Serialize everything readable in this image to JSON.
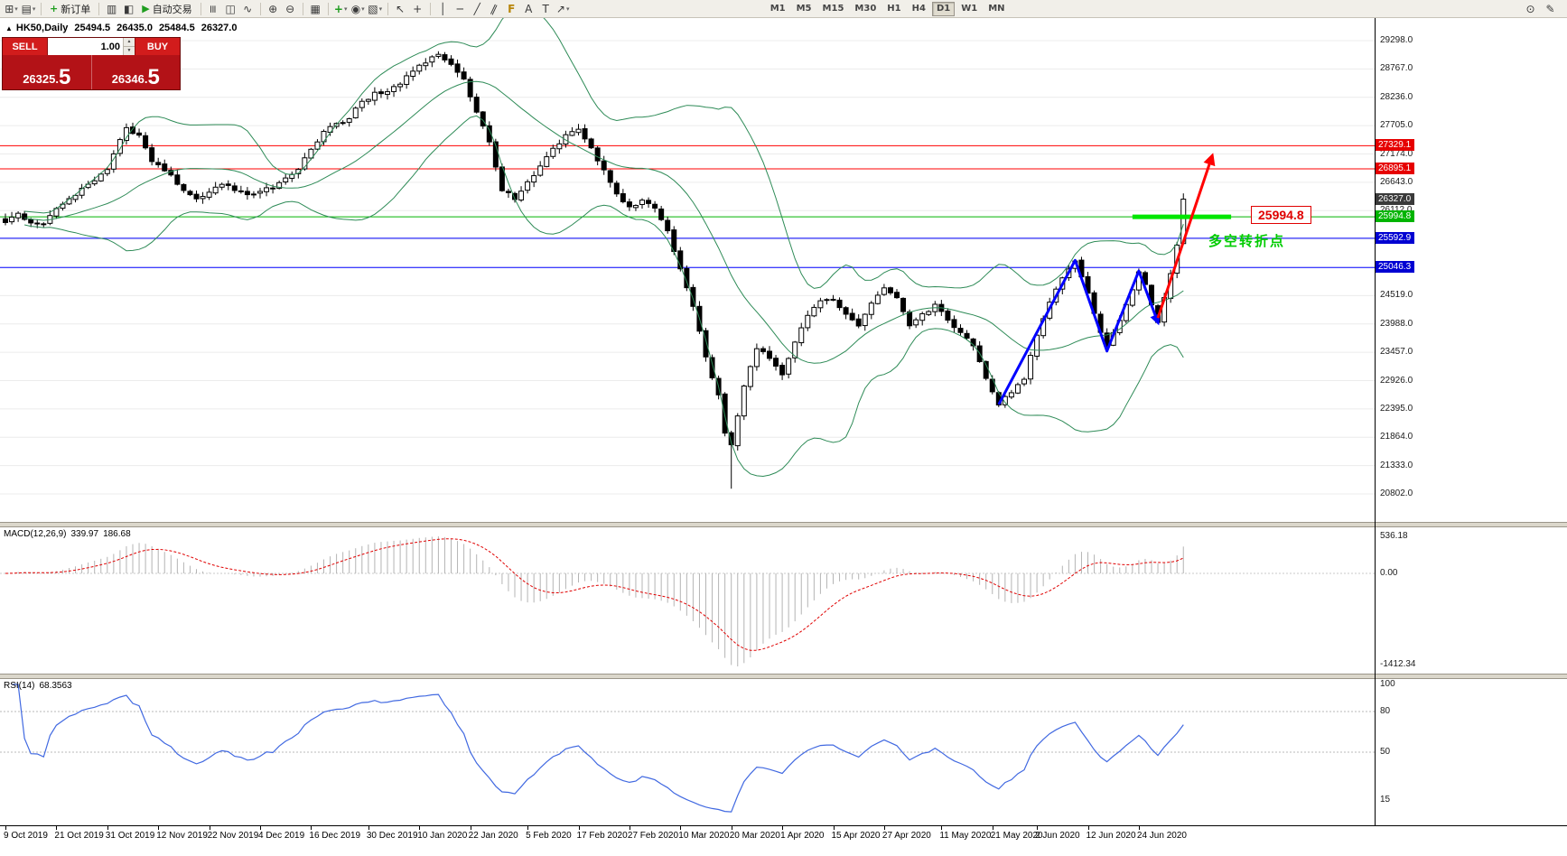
{
  "toolbar": {
    "groups": [
      {
        "items": [
          {
            "type": "icon",
            "name": "new-chart-icon",
            "glyph": "⊞",
            "drop": true
          },
          {
            "type": "icon",
            "name": "profiles-icon",
            "glyph": "▤",
            "drop": true
          }
        ]
      },
      {
        "items": [
          {
            "type": "button",
            "name": "new-order-button",
            "icon_name": "new-order-icon",
            "icon_glyph": "+",
            "icon_color": "#1f9d1f",
            "label": "新订单"
          }
        ]
      },
      {
        "items": [
          {
            "type": "icon",
            "name": "market-watch-icon",
            "glyph": "▥"
          },
          {
            "type": "icon",
            "name": "data-window-icon",
            "glyph": "◧"
          },
          {
            "type": "button",
            "name": "autotrading-button",
            "icon_name": "play-icon",
            "icon_glyph": "▶",
            "icon_color": "#1f9d1f",
            "label": "自动交易"
          }
        ]
      },
      {
        "items": [
          {
            "type": "icon",
            "name": "bar-chart-icon",
            "glyph": "≡",
            "rot": 90
          },
          {
            "type": "icon",
            "name": "candlestick-chart-icon",
            "glyph": "◫"
          },
          {
            "type": "icon",
            "name": "line-chart-icon",
            "glyph": "∿"
          }
        ]
      },
      {
        "items": [
          {
            "type": "icon",
            "name": "zoom-in-icon",
            "glyph": "⊕"
          },
          {
            "type": "icon",
            "name": "zoom-out-icon",
            "glyph": "⊖"
          }
        ]
      },
      {
        "items": [
          {
            "type": "icon",
            "name": "tile-windows-icon",
            "glyph": "▦"
          }
        ]
      },
      {
        "items": [
          {
            "type": "icon",
            "name": "indicators-icon",
            "glyph": "+",
            "color": "#1f9d1f",
            "drop": true
          },
          {
            "type": "icon",
            "name": "periods-icon",
            "glyph": "◉",
            "drop": true
          },
          {
            "type": "icon",
            "name": "templates-icon",
            "glyph": "▧",
            "drop": true
          }
        ]
      },
      {
        "items": [
          {
            "type": "icon",
            "name": "cursor-icon",
            "glyph": "↖"
          },
          {
            "type": "icon",
            "name": "crosshair-icon",
            "glyph": "+"
          }
        ]
      },
      {
        "items": [
          {
            "type": "icon",
            "name": "vertical-line-icon",
            "glyph": "│"
          },
          {
            "type": "icon",
            "name": "horizontal-line-icon",
            "glyph": "─"
          },
          {
            "type": "icon",
            "name": "trendline-icon",
            "glyph": "╱"
          },
          {
            "type": "icon",
            "name": "equidistant-channel-icon",
            "glyph": "∥",
            "rot": 25
          },
          {
            "type": "icon",
            "name": "fibonacci-icon",
            "glyph": "F",
            "color": "#b8860b"
          },
          {
            "type": "icon",
            "name": "text-icon",
            "glyph": "A"
          },
          {
            "type": "icon",
            "name": "text-label-icon",
            "glyph": "T"
          },
          {
            "type": "icon",
            "name": "arrows-icon",
            "glyph": "↗",
            "drop": true
          }
        ]
      }
    ],
    "timeframes": [
      "M1",
      "M5",
      "M15",
      "M30",
      "H1",
      "H4",
      "D1",
      "W1",
      "MN"
    ],
    "active_timeframe": "D1",
    "right_icons": [
      {
        "name": "magnifier-icon",
        "glyph": "⊙"
      },
      {
        "name": "quick-draw-icon",
        "glyph": "✎"
      }
    ]
  },
  "chart_header": {
    "marker": "▲",
    "symbol": "HK50,Daily",
    "open": "25494.5",
    "high": "26435.0",
    "low": "25484.5",
    "close": "26327.0"
  },
  "trade_panel": {
    "sell_label": "SELL",
    "buy_label": "BUY",
    "volume": "1.00",
    "spinner_up": "▲",
    "spinner_down": "▼",
    "sell_price_main": "26325.",
    "sell_price_pip": "5",
    "buy_price_main": "26346.",
    "buy_price_pip": "5"
  },
  "price_axis": {
    "ticks": [
      "29298.0",
      "28767.0",
      "28236.0",
      "27705.0",
      "27174.0",
      "26643.0",
      "26112.0",
      "25581.0",
      "25050.0",
      "24519.0",
      "23988.0",
      "23457.0",
      "22926.0",
      "22395.0",
      "21864.0",
      "21333.0",
      "20802.0"
    ],
    "tags": [
      {
        "label": "27329.1",
        "value": 27329.1,
        "bg": "#e60000"
      },
      {
        "label": "26895.1",
        "value": 26895.1,
        "bg": "#e60000"
      },
      {
        "label": "26327.0",
        "value": 26327.0,
        "bg": "#3a3a3a"
      },
      {
        "label": "25994.8",
        "value": 25994.8,
        "bg": "#00b400"
      },
      {
        "label": "25592.9",
        "value": 25592.9,
        "bg": "#0000d2"
      },
      {
        "label": "25046.3",
        "value": 25046.3,
        "bg": "#0000d2"
      }
    ]
  },
  "chart_data": {
    "type": "candlestick",
    "symbol": "HK50",
    "timeframe": "Daily",
    "n_candles": 186,
    "price_range": [
      20802,
      29298
    ],
    "ohlc_current": {
      "open": 25494.5,
      "high": 26435.0,
      "low": 25484.5,
      "close": 26327.0
    },
    "crash_wick": {
      "index": 114,
      "low": 20900
    },
    "close_anchors": [
      [
        0,
        25900
      ],
      [
        2,
        26080
      ],
      [
        4,
        25880
      ],
      [
        6,
        25850
      ],
      [
        8,
        26150
      ],
      [
        10,
        26320
      ],
      [
        12,
        26500
      ],
      [
        14,
        26650
      ],
      [
        16,
        26900
      ],
      [
        18,
        27450
      ],
      [
        19,
        27650
      ],
      [
        21,
        27500
      ],
      [
        23,
        27050
      ],
      [
        26,
        26750
      ],
      [
        28,
        26500
      ],
      [
        30,
        26320
      ],
      [
        32,
        26450
      ],
      [
        34,
        26620
      ],
      [
        36,
        26500
      ],
      [
        38,
        26380
      ],
      [
        40,
        26480
      ],
      [
        42,
        26550
      ],
      [
        44,
        26700
      ],
      [
        46,
        26900
      ],
      [
        48,
        27250
      ],
      [
        50,
        27600
      ],
      [
        52,
        27720
      ],
      [
        54,
        27850
      ],
      [
        56,
        28150
      ],
      [
        58,
        28300
      ],
      [
        60,
        28350
      ],
      [
        62,
        28500
      ],
      [
        64,
        28750
      ],
      [
        66,
        28900
      ],
      [
        68,
        29050
      ],
      [
        70,
        28820
      ],
      [
        72,
        28550
      ],
      [
        74,
        27950
      ],
      [
        76,
        27400
      ],
      [
        78,
        26500
      ],
      [
        80,
        26350
      ],
      [
        82,
        26650
      ],
      [
        84,
        26950
      ],
      [
        86,
        27250
      ],
      [
        88,
        27500
      ],
      [
        90,
        27650
      ],
      [
        92,
        27300
      ],
      [
        94,
        26850
      ],
      [
        96,
        26450
      ],
      [
        98,
        26150
      ],
      [
        100,
        26300
      ],
      [
        102,
        26150
      ],
      [
        104,
        25700
      ],
      [
        106,
        25050
      ],
      [
        108,
        24350
      ],
      [
        110,
        23350
      ],
      [
        112,
        22650
      ],
      [
        113,
        21950
      ],
      [
        114,
        21750
      ],
      [
        115,
        22250
      ],
      [
        116,
        22850
      ],
      [
        118,
        23550
      ],
      [
        120,
        23350
      ],
      [
        122,
        23050
      ],
      [
        124,
        23650
      ],
      [
        126,
        24150
      ],
      [
        128,
        24400
      ],
      [
        130,
        24450
      ],
      [
        132,
        24150
      ],
      [
        134,
        23950
      ],
      [
        136,
        24350
      ],
      [
        138,
        24650
      ],
      [
        140,
        24500
      ],
      [
        142,
        23950
      ],
      [
        144,
        24150
      ],
      [
        146,
        24350
      ],
      [
        148,
        24050
      ],
      [
        150,
        23850
      ],
      [
        152,
        23550
      ],
      [
        154,
        22950
      ],
      [
        156,
        22500
      ],
      [
        158,
        22700
      ],
      [
        160,
        22950
      ],
      [
        162,
        23800
      ],
      [
        164,
        24400
      ],
      [
        166,
        24850
      ],
      [
        168,
        25150
      ],
      [
        170,
        24550
      ],
      [
        172,
        23800
      ],
      [
        173,
        23550
      ],
      [
        175,
        24050
      ],
      [
        177,
        24650
      ],
      [
        178,
        24950
      ],
      [
        179,
        24750
      ],
      [
        180,
        24350
      ],
      [
        181,
        24050
      ],
      [
        182,
        24450
      ],
      [
        183,
        24900
      ],
      [
        184,
        25450
      ],
      [
        185,
        26327
      ]
    ],
    "levels": [
      {
        "price": 27329.1,
        "color": "#ff0000"
      },
      {
        "price": 26895.1,
        "color": "#ff0000"
      },
      {
        "price": 25994.8,
        "color": "#00b400"
      },
      {
        "price": 25592.9,
        "color": "#0000ff"
      },
      {
        "price": 25046.3,
        "color": "#0000ff"
      }
    ],
    "indicators": {
      "bollinger": {
        "period": 20,
        "deviation": 2,
        "color": "#2e8b57"
      },
      "macd": {
        "title": "MACD(12,26,9)",
        "value_main": "339.97",
        "value_signal": "186.68",
        "axis_max": "536.18",
        "axis_zero": "0.00",
        "axis_min": "-1412.34",
        "hist_color": "#b4b4b4",
        "signal_color": "#e00000"
      },
      "rsi": {
        "title": "RSI(14)",
        "value": "68.3563",
        "color": "#4169e1",
        "axis_labels": [
          {
            "text": "100",
            "value": 100
          },
          {
            "text": "80",
            "value": 80
          },
          {
            "text": "50",
            "value": 50
          },
          {
            "text": "15",
            "value": 15
          }
        ],
        "levels": [
          80,
          50
        ]
      }
    },
    "time_labels": [
      {
        "text": "9 Oct 2019",
        "index": 0
      },
      {
        "text": "21 Oct 2019",
        "index": 8
      },
      {
        "text": "31 Oct 2019",
        "index": 16
      },
      {
        "text": "12 Nov 2019",
        "index": 24
      },
      {
        "text": "22 Nov 2019",
        "index": 32
      },
      {
        "text": "4 Dec 2019",
        "index": 40
      },
      {
        "text": "16 Dec 2019",
        "index": 48
      },
      {
        "text": "30 Dec 2019",
        "index": 57
      },
      {
        "text": "10 Jan 2020",
        "index": 65
      },
      {
        "text": "22 Jan 2020",
        "index": 73
      },
      {
        "text": "5 Feb 2020",
        "index": 82
      },
      {
        "text": "17 Feb 2020",
        "index": 90
      },
      {
        "text": "27 Feb 2020",
        "index": 98
      },
      {
        "text": "10 Mar 2020",
        "index": 106
      },
      {
        "text": "20 Mar 2020",
        "index": 114
      },
      {
        "text": "1 Apr 2020",
        "index": 122
      },
      {
        "text": "15 Apr 2020",
        "index": 130
      },
      {
        "text": "27 Apr 2020",
        "index": 138
      },
      {
        "text": "11 May 2020",
        "index": 147
      },
      {
        "text": "21 May 2020",
        "index": 155
      },
      {
        "text": "2 Jun 2020",
        "index": 162
      },
      {
        "text": "12 Jun 2020",
        "index": 170
      },
      {
        "text": "24 Jun 2020",
        "index": 178
      }
    ],
    "annotations": {
      "support_label": "25994.8",
      "support_price": 25994.8,
      "support_segment": {
        "x1_index": 177,
        "x2_index": 192.5,
        "color": "#00e600"
      },
      "turning_point_text": "多空转折点",
      "turning_point_color": "#00cc00",
      "blue_zigzag": [
        [
          156,
          22480
        ],
        [
          168,
          25180
        ],
        [
          173,
          23480
        ],
        [
          178,
          24980
        ],
        [
          181,
          24020
        ]
      ],
      "zigzag_color": "#0000ff",
      "red_arrow": {
        "from": [
          181,
          24100
        ],
        "to": [
          189.5,
          27130
        ],
        "color": "#ff0000"
      }
    }
  }
}
